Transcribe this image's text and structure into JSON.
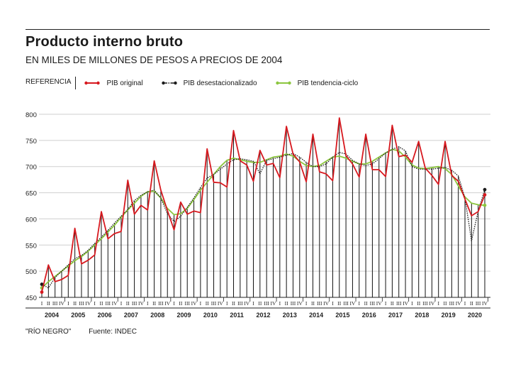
{
  "header": {
    "title": "Producto interno bruto",
    "subtitle": "EN MILES DE MILLONES DE PESOS A PRECIOS DE 2004"
  },
  "legend": {
    "label": "REFERENCIA",
    "items": [
      {
        "name": "PIB original",
        "color": "#d7191f"
      },
      {
        "name": "PIB desestacionalizado",
        "color": "#1a1a1a"
      },
      {
        "name": "PIB tendencia-ciclo",
        "color": "#8cc63f"
      }
    ]
  },
  "footer": {
    "credit": "\"RÍO NEGRO\"",
    "source": "Fuente: INDEC"
  },
  "chart_data": {
    "type": "line",
    "title": "Producto interno bruto",
    "ylabel": "En miles de millones de pesos a precios de 2004",
    "ylim": [
      450,
      800
    ],
    "yticks": [
      450,
      500,
      550,
      600,
      650,
      700,
      750,
      800
    ],
    "grid": true,
    "quarter_labels": [
      "I",
      "II",
      "III",
      "IV"
    ],
    "years": [
      "2004",
      "2005",
      "2006",
      "2007",
      "2008",
      "2009",
      "2010",
      "2011",
      "2012",
      "2013",
      "2014",
      "2015",
      "2016",
      "2017",
      "2018",
      "2019",
      "2020"
    ],
    "series": [
      {
        "name": "PIB original",
        "color": "#d7191f",
        "style": "solid",
        "values": [
          460,
          512,
          480,
          484,
          492,
          582,
          514,
          521,
          531,
          614,
          562,
          572,
          576,
          674,
          609,
          626,
          617,
          711,
          655,
          616,
          579,
          632,
          609,
          615,
          612,
          734,
          670,
          669,
          661,
          769,
          711,
          703,
          672,
          731,
          703,
          706,
          679,
          777,
          724,
          709,
          671,
          762,
          690,
          686,
          673,
          793,
          721,
          705,
          680,
          762,
          694,
          694,
          681,
          779,
          719,
          722,
          708,
          748,
          697,
          683,
          666,
          748,
          683,
          672,
          638,
          606,
          614,
          646
        ]
      },
      {
        "name": "PIB desestacionalizado",
        "color": "#1a1a1a",
        "style": "dotted",
        "values": [
          475,
          468,
          488,
          500,
          512,
          524,
          530,
          540,
          553,
          565,
          578,
          592,
          605,
          618,
          635,
          645,
          652,
          655,
          640,
          610,
          595,
          605,
          622,
          640,
          660,
          678,
          685,
          695,
          705,
          713,
          715,
          713,
          710,
          686,
          712,
          715,
          718,
          722,
          725,
          718,
          708,
          700,
          700,
          705,
          718,
          727,
          724,
          712,
          705,
          702,
          705,
          715,
          726,
          733,
          738,
          730,
          700,
          695,
          695,
          695,
          697,
          698,
          693,
          682,
          640,
          558,
          615,
          656
        ]
      },
      {
        "name": "PIB tendencia-ciclo",
        "color": "#8cc63f",
        "style": "solid",
        "values": [
          468,
          480,
          490,
          500,
          510,
          520,
          528,
          538,
          550,
          562,
          575,
          588,
          603,
          617,
          630,
          643,
          652,
          653,
          640,
          620,
          608,
          610,
          620,
          637,
          655,
          670,
          685,
          700,
          712,
          716,
          713,
          710,
          708,
          708,
          713,
          718,
          720,
          724,
          720,
          710,
          702,
          700,
          702,
          710,
          718,
          720,
          716,
          710,
          705,
          705,
          710,
          718,
          726,
          733,
          730,
          718,
          703,
          697,
          696,
          698,
          700,
          696,
          685,
          663,
          642,
          630,
          627,
          626
        ]
      }
    ]
  }
}
